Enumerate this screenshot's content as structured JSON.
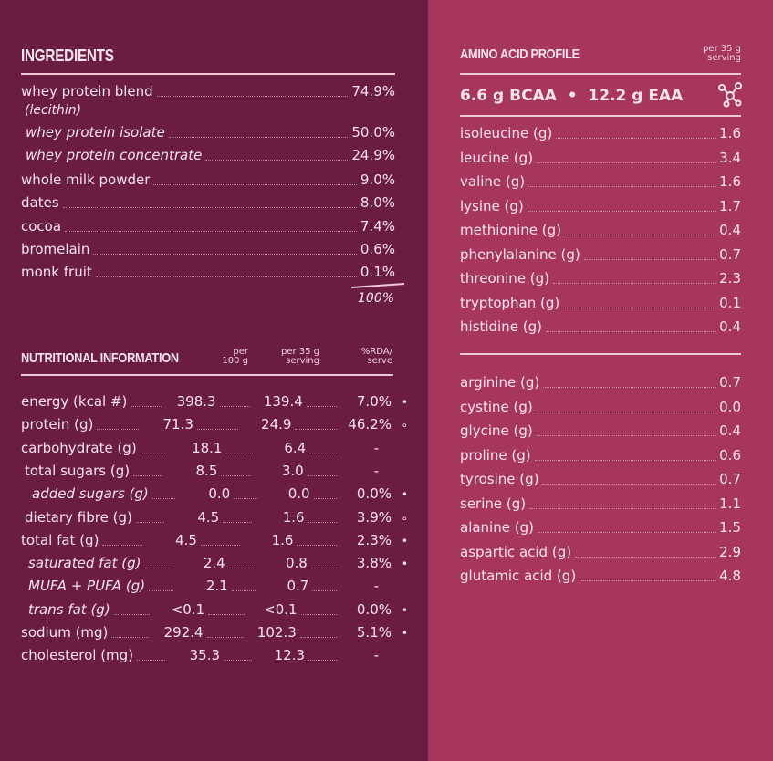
{
  "ingredients": {
    "title": "INGREDIENTS",
    "items": [
      {
        "name": "whey protein blend",
        "value": "74.9%",
        "sub": "(lecithin)"
      },
      {
        "name": "whey protein isolate",
        "value": "50.0%",
        "italic": true
      },
      {
        "name": "whey protein concentrate",
        "value": "24.9%",
        "italic": true
      },
      {
        "name": "whole milk powder",
        "value": "9.0%"
      },
      {
        "name": "dates",
        "value": "8.0%"
      },
      {
        "name": "cocoa",
        "value": "7.4%"
      },
      {
        "name": "bromelain",
        "value": "0.6%"
      },
      {
        "name": "monk fruit",
        "value": "0.1%"
      }
    ],
    "total": "100%"
  },
  "nutrition": {
    "title": "NUTRITIONAL INFORMATION",
    "col1": "per\n100 g",
    "col2": "per 35 g\nserving",
    "col3": "%RDA/\nserve",
    "rows": [
      {
        "name": "energy (kcal #)",
        "per100": "398.3",
        "serving": "139.4",
        "rda": "7.0%",
        "mark": "•"
      },
      {
        "name": "protein (g)",
        "per100": "71.3",
        "serving": "24.9",
        "rda": "46.2%",
        "mark": "∘"
      },
      {
        "name": "carbohydrate (g)",
        "per100": "18.1",
        "serving": "6.4",
        "rda": "-",
        "mark": ""
      },
      {
        "name": "total sugars (g)",
        "per100": "8.5",
        "serving": "3.0",
        "rda": "-",
        "mark": "",
        "indent": 1
      },
      {
        "name": "added sugars (g)",
        "per100": "0.0",
        "serving": "0.0",
        "rda": "0.0%",
        "mark": "•",
        "indent": 2,
        "italic": true
      },
      {
        "name": "dietary fibre (g)",
        "per100": "4.5",
        "serving": "1.6",
        "rda": "3.9%",
        "mark": "∘",
        "indent": 1
      },
      {
        "name": "total fat (g)",
        "per100": "4.5",
        "serving": "1.6",
        "rda": "2.3%",
        "mark": "•"
      },
      {
        "name": "saturated fat (g)",
        "per100": "2.4",
        "serving": "0.8",
        "rda": "3.8%",
        "mark": "•",
        "indent": 1,
        "italic": true
      },
      {
        "name": "MUFA + PUFA (g)",
        "per100": "2.1",
        "serving": "0.7",
        "rda": "-",
        "mark": "",
        "indent": 1,
        "italic": true
      },
      {
        "name": "trans fat (g)",
        "per100": "<0.1",
        "serving": "<0.1",
        "rda": "0.0%",
        "mark": "•",
        "indent": 1,
        "italic": true
      },
      {
        "name": "sodium (mg)",
        "per100": "292.4",
        "serving": "102.3",
        "rda": "5.1%",
        "mark": "•"
      },
      {
        "name": "cholesterol (mg)",
        "per100": "35.3",
        "serving": "12.3",
        "rda": "-",
        "mark": ""
      }
    ]
  },
  "amino": {
    "title": "AMINO ACID PROFILE",
    "per": "per 35 g\nserving",
    "summary": "6.6 g BCAA  •  12.2 g EAA",
    "icon": "molecule-icon",
    "group1": [
      {
        "name": "isoleucine (g)",
        "value": "1.6"
      },
      {
        "name": "leucine (g)",
        "value": "3.4"
      },
      {
        "name": "valine (g)",
        "value": "1.6"
      },
      {
        "name": "lysine (g)",
        "value": "1.7"
      },
      {
        "name": "methionine (g)",
        "value": "0.4"
      },
      {
        "name": "phenylalanine (g)",
        "value": "0.7"
      },
      {
        "name": "threonine (g)",
        "value": "2.3"
      },
      {
        "name": "tryptophan (g)",
        "value": "0.1"
      },
      {
        "name": "histidine (g)",
        "value": "0.4"
      }
    ],
    "group2": [
      {
        "name": "arginine (g)",
        "value": "0.7"
      },
      {
        "name": "cystine (g)",
        "value": "0.0"
      },
      {
        "name": "glycine (g)",
        "value": "0.4"
      },
      {
        "name": "proline (g)",
        "value": "0.6"
      },
      {
        "name": "tyrosine (g)",
        "value": "0.7"
      },
      {
        "name": "serine (g)",
        "value": "1.1"
      },
      {
        "name": "alanine (g)",
        "value": "1.5"
      },
      {
        "name": "aspartic acid (g)",
        "value": "2.9"
      },
      {
        "name": "glutamic acid (g)",
        "value": "4.8"
      }
    ]
  },
  "colors": {
    "left": "#6a1c41",
    "right": "#a7365f",
    "text": "#f6e4ec"
  }
}
